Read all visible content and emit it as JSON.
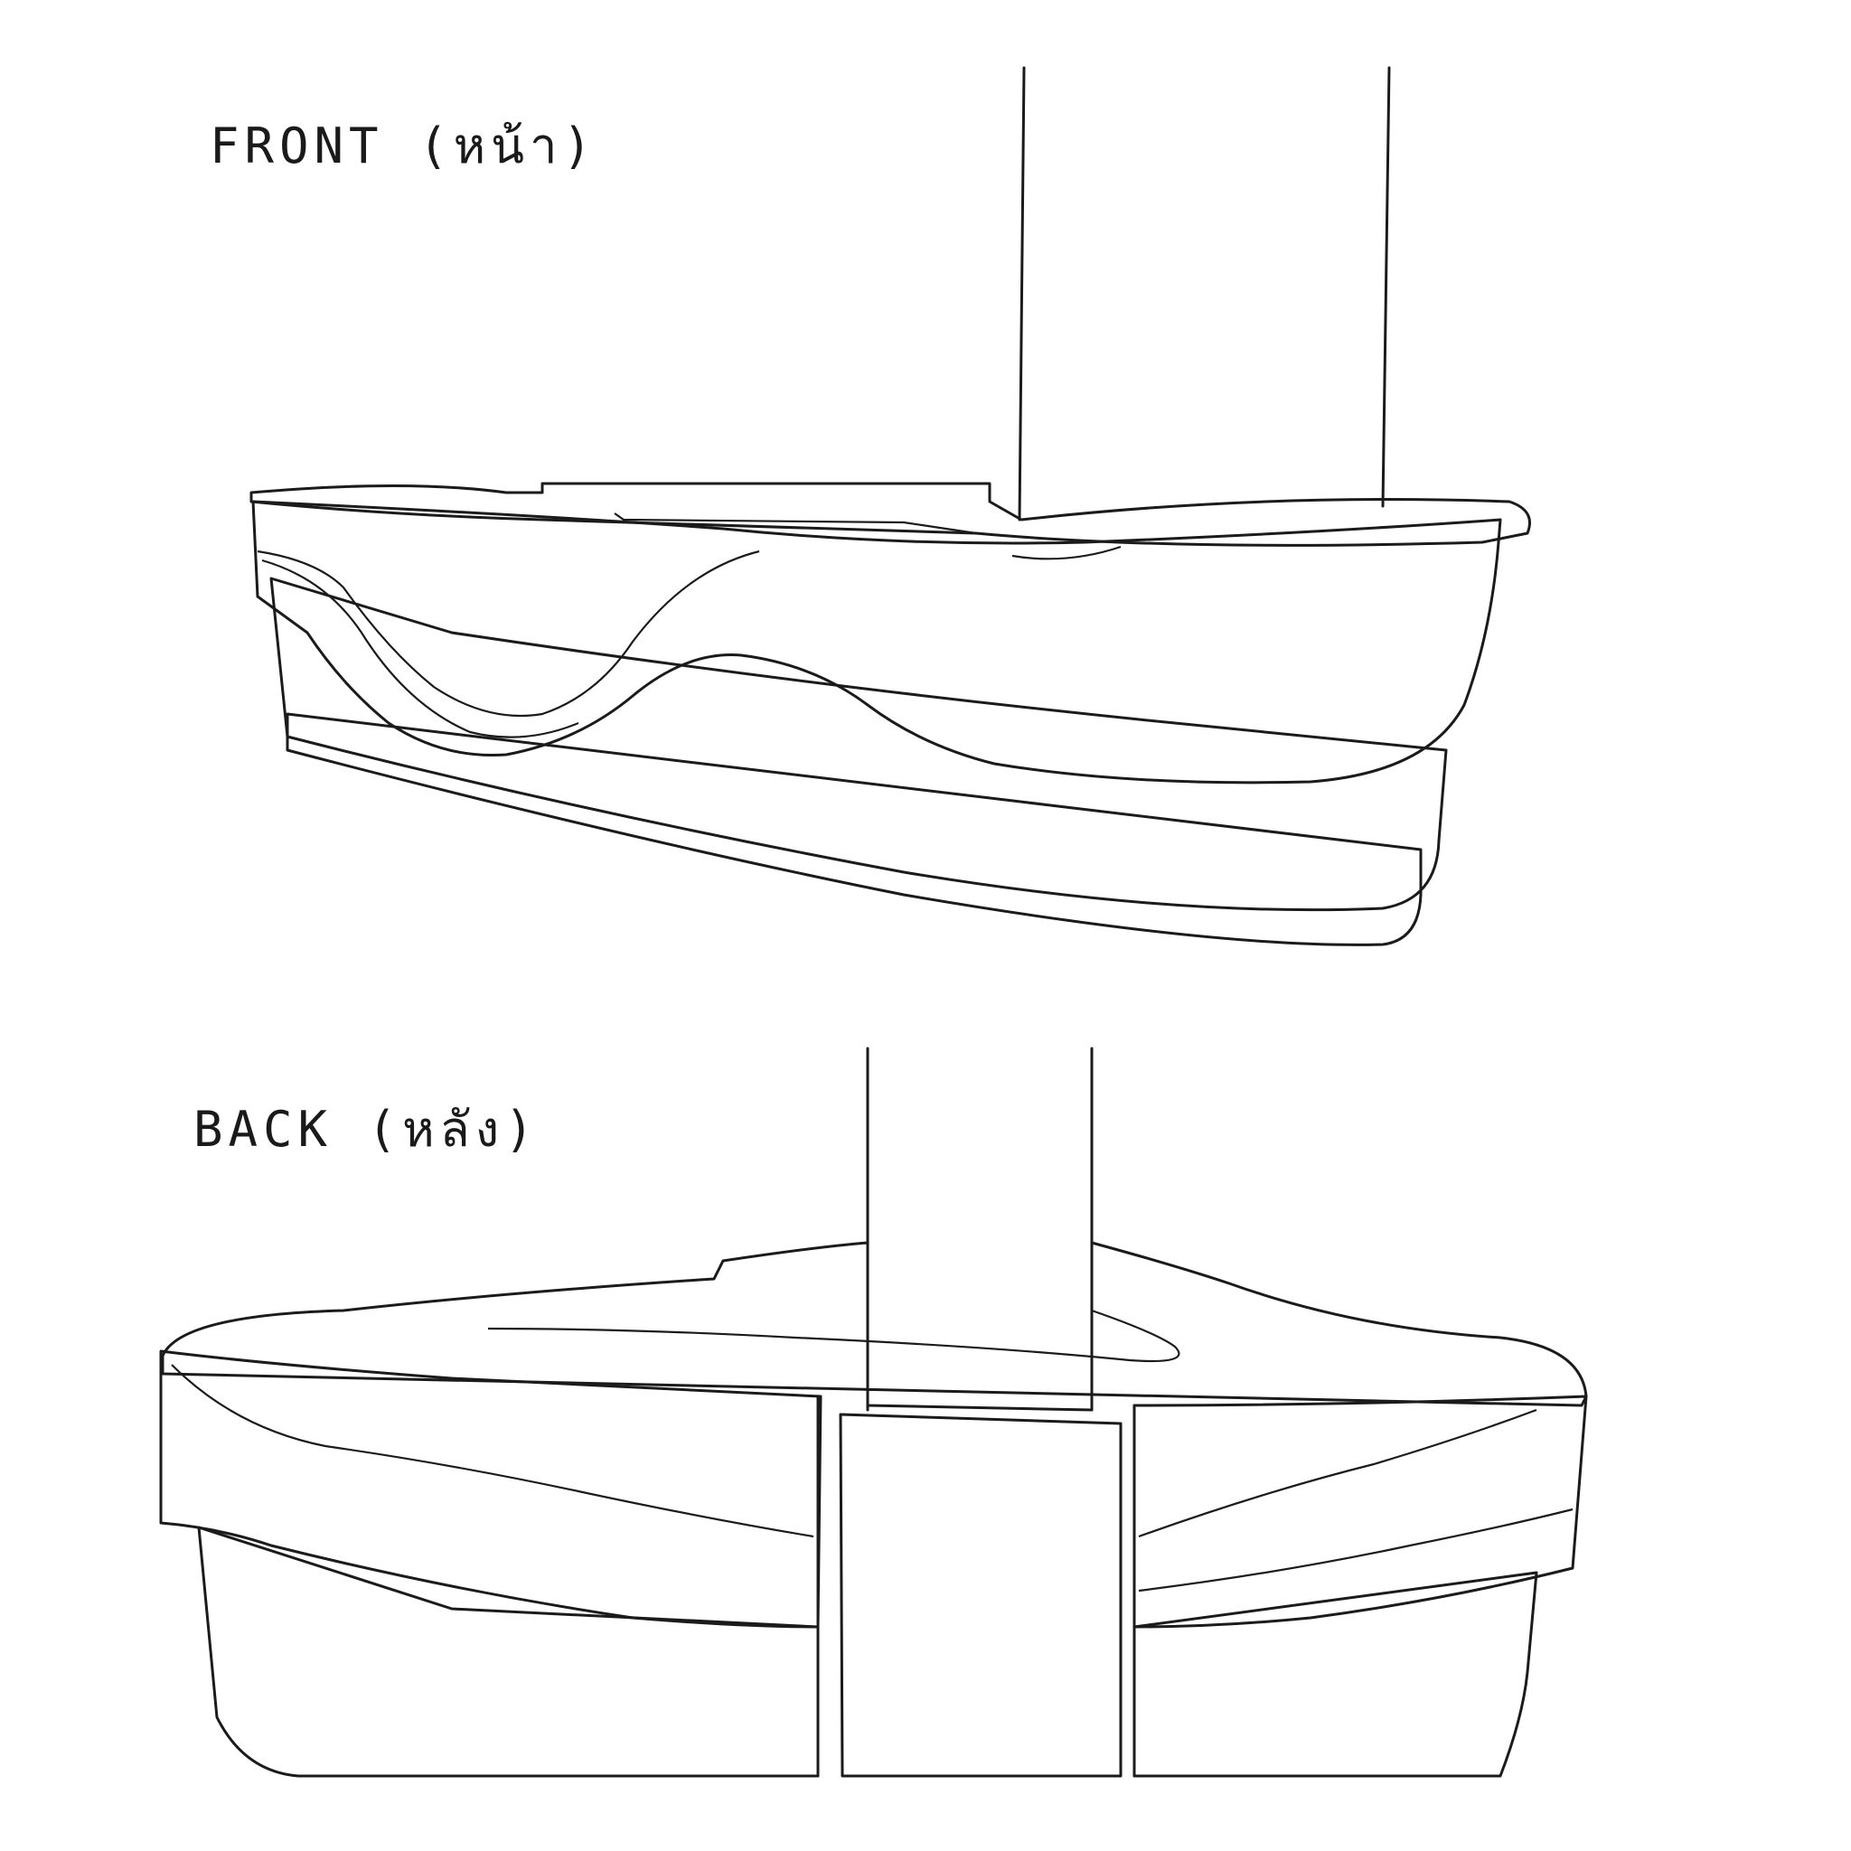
{
  "front": {
    "label": "FRONT (หน้า)"
  },
  "back": {
    "label": "BACK (หลัง)"
  },
  "colors": {
    "body_gray": "#83857d",
    "plinth_gray": "#b2b3b5",
    "pastel_yellow": "#f2dc6e",
    "pastel_cream": "#f5eec8",
    "pastel_pink": "#e3999a",
    "pastel_salmon": "#dd8077",
    "pastel_orange": "#e3a477",
    "pastel_sage": "#b0c28a",
    "pastel_mint": "#8cc09a",
    "outline": "#1b1b1b"
  }
}
